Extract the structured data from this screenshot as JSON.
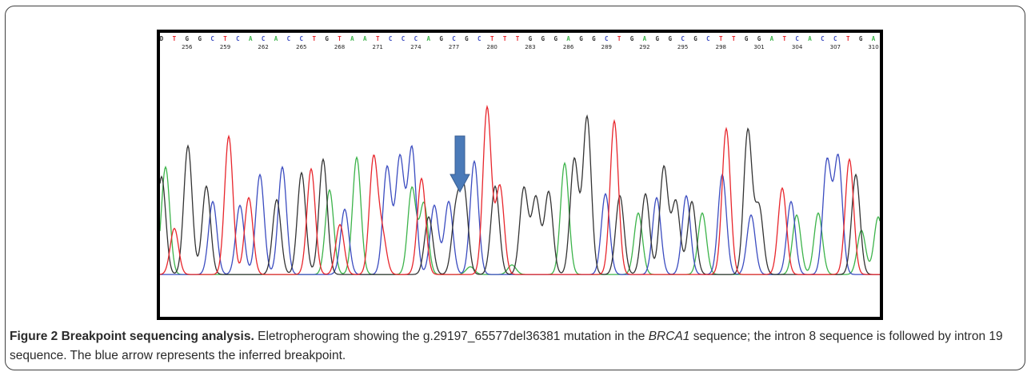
{
  "figure": {
    "title": "Figure 2 Breakpoint sequencing analysis.",
    "caption_before_gene": " Eletropherogram showing the g.29197_65577del36381 mutation in the ",
    "gene": "BRCA1",
    "caption_after_gene": " sequence; the intron 8 sequence is followed by intron 19 sequence. The blue arrow represents the inferred breakpoint."
  },
  "chart_data": {
    "type": "line",
    "title": "",
    "xlabel": "",
    "ylabel": "",
    "grid": false,
    "legend": "none",
    "colors": {
      "A": "#3cb34a",
      "C": "#3b4cc0",
      "G": "#333333",
      "T": "#e8262c",
      "arrow": "#4a7ab8"
    },
    "bases": "DTGGCTCACACCTGTAATCCCAGCGCTTTGGGAGGCTGAGGCGCTTGGATCACCTGA",
    "position_ticks": [
      256,
      259,
      262,
      265,
      268,
      271,
      274,
      277,
      280,
      283,
      286,
      289,
      292,
      295,
      298,
      301,
      304,
      307,
      310
    ],
    "tick_start_base_index": 2,
    "annotations": [
      {
        "type": "arrow",
        "label": "inferred breakpoint",
        "at_peak": 31
      }
    ],
    "series": [
      {
        "name": "A",
        "peaks": [
          [
            207,
            0.56
          ],
          [
            412,
            0.44
          ],
          [
            446,
            0.61
          ],
          [
            515,
            0.45
          ],
          [
            530,
            0.37
          ],
          [
            588,
            0.04
          ],
          [
            640,
            0.05
          ],
          [
            706,
            0.58
          ],
          [
            798,
            0.32
          ],
          [
            878,
            0.32
          ],
          [
            996,
            0.31
          ],
          [
            1023,
            0.32
          ],
          [
            1077,
            0.23
          ],
          [
            1098,
            0.3
          ]
        ]
      },
      {
        "name": "C",
        "peaks": [
          [
            266,
            0.38
          ],
          [
            300,
            0.36
          ],
          [
            325,
            0.52
          ],
          [
            353,
            0.56
          ],
          [
            431,
            0.34
          ],
          [
            484,
            0.56
          ],
          [
            500,
            0.61
          ],
          [
            515,
            0.66
          ],
          [
            543,
            0.36
          ],
          [
            561,
            0.38
          ],
          [
            593,
            0.59
          ],
          [
            757,
            0.42
          ],
          [
            821,
            0.4
          ],
          [
            858,
            0.41
          ],
          [
            903,
            0.52
          ],
          [
            939,
            0.31
          ],
          [
            989,
            0.38
          ],
          [
            1034,
            0.59
          ],
          [
            1048,
            0.61
          ]
        ]
      },
      {
        "name": "G",
        "peaks": [
          [
            202,
            0.51
          ],
          [
            235,
            0.67
          ],
          [
            258,
            0.46
          ],
          [
            346,
            0.39
          ],
          [
            377,
            0.53
          ],
          [
            404,
            0.6
          ],
          [
            536,
            0.3
          ],
          [
            570,
            0.32
          ],
          [
            580,
            0.43
          ],
          [
            619,
            0.46
          ],
          [
            655,
            0.45
          ],
          [
            670,
            0.4
          ],
          [
            686,
            0.43
          ],
          [
            718,
            0.6
          ],
          [
            734,
            0.82
          ],
          [
            775,
            0.41
          ],
          [
            807,
            0.42
          ],
          [
            830,
            0.56
          ],
          [
            845,
            0.38
          ],
          [
            865,
            0.38
          ],
          [
            935,
            0.75
          ],
          [
            949,
            0.35
          ],
          [
            1070,
            0.52
          ]
        ]
      },
      {
        "name": "T",
        "peaks": [
          [
            218,
            0.24
          ],
          [
            286,
            0.72
          ],
          [
            311,
            0.4
          ],
          [
            389,
            0.55
          ],
          [
            425,
            0.26
          ],
          [
            467,
            0.6
          ],
          [
            478,
            0.2
          ],
          [
            527,
            0.5
          ],
          [
            609,
            0.87
          ],
          [
            625,
            0.46
          ],
          [
            768,
            0.8
          ],
          [
            908,
            0.76
          ],
          [
            978,
            0.45
          ],
          [
            1062,
            0.6
          ]
        ]
      }
    ]
  }
}
